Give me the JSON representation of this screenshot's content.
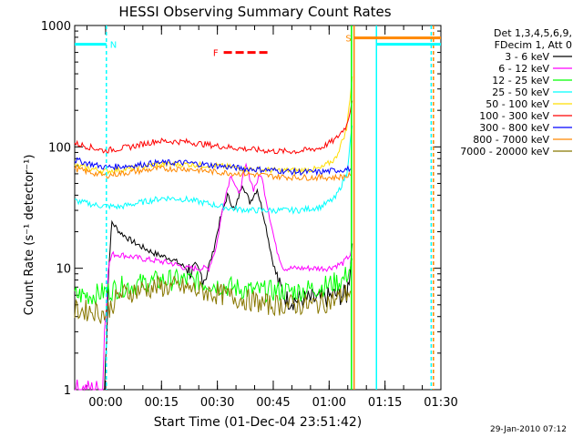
{
  "chart_data": {
    "type": "line",
    "title": "HESSI Observing Summary Count Rates",
    "xlabel": "Start Time (01-Dec-04 23:51:42)",
    "ylabel": "Count Rate (s⁻¹ detector⁻¹)",
    "y_scale": "log",
    "ylim": [
      1,
      1000
    ],
    "xlim_minutes_after_start": [
      0,
      98.3
    ],
    "x_ticks": [
      {
        "label": "00:00",
        "minutes": 8.3
      },
      {
        "label": "00:15",
        "minutes": 23.3
      },
      {
        "label": "00:30",
        "minutes": 38.3
      },
      {
        "label": "00:45",
        "minutes": 53.3
      },
      {
        "label": "01:00",
        "minutes": 68.3
      },
      {
        "label": "01:15",
        "minutes": 83.3
      },
      {
        "label": "01:30",
        "minutes": 98.3
      }
    ],
    "y_ticks": [
      {
        "label": "1",
        "value": 1
      },
      {
        "label": "10",
        "value": 10
      },
      {
        "label": "100",
        "value": 100
      },
      {
        "label": "1000",
        "value": 1000
      }
    ],
    "legend": {
      "placement": "right",
      "header": [
        "Det 1,3,4,5,6,9,",
        "FDecim 1, Att 0"
      ]
    },
    "series": [
      {
        "name": "3 - 6 keV",
        "color": "#000000",
        "points": [
          [
            8,
            1
          ],
          [
            8.6,
            3
          ],
          [
            9,
            8
          ],
          [
            9.5,
            15
          ],
          [
            10,
            24
          ],
          [
            12,
            20
          ],
          [
            15,
            17
          ],
          [
            18,
            15
          ],
          [
            22,
            13
          ],
          [
            26,
            12
          ],
          [
            30,
            10
          ],
          [
            33,
            9
          ],
          [
            35,
            8.5
          ],
          [
            37,
            13
          ],
          [
            39,
            25
          ],
          [
            41,
            40
          ],
          [
            43,
            30
          ],
          [
            45,
            50
          ],
          [
            47,
            35
          ],
          [
            49,
            45
          ],
          [
            51,
            25
          ],
          [
            53,
            12
          ],
          [
            55,
            7
          ],
          [
            57,
            5.5
          ],
          [
            60,
            5.5
          ],
          [
            63,
            5.5
          ],
          [
            66,
            5.5
          ],
          [
            70,
            6
          ],
          [
            73,
            6
          ],
          [
            74,
            10
          ],
          [
            74.5,
            16
          ]
        ]
      },
      {
        "name": "6 - 12 keV",
        "color": "#ff00ff",
        "points": [
          [
            0,
            1
          ],
          [
            7.5,
            1
          ],
          [
            8,
            3
          ],
          [
            9,
            10
          ],
          [
            10,
            13
          ],
          [
            12,
            13
          ],
          [
            15,
            12.5
          ],
          [
            18,
            12
          ],
          [
            22,
            11.5
          ],
          [
            26,
            11
          ],
          [
            30,
            10
          ],
          [
            33,
            10
          ],
          [
            36,
            10
          ],
          [
            38,
            15
          ],
          [
            40,
            35
          ],
          [
            42,
            60
          ],
          [
            44,
            40
          ],
          [
            46,
            70
          ],
          [
            48,
            45
          ],
          [
            50,
            60
          ],
          [
            52,
            30
          ],
          [
            54,
            15
          ],
          [
            56,
            10
          ],
          [
            60,
            10
          ],
          [
            64,
            10
          ],
          [
            68,
            10
          ],
          [
            72,
            11
          ],
          [
            74,
            13
          ],
          [
            74.5,
            14
          ]
        ]
      },
      {
        "name": "12 - 25 keV",
        "color": "#00ff00",
        "points": [
          [
            0,
            6
          ],
          [
            5,
            6
          ],
          [
            9,
            6.5
          ],
          [
            12,
            7
          ],
          [
            18,
            7.5
          ],
          [
            24,
            8
          ],
          [
            30,
            8
          ],
          [
            36,
            7.5
          ],
          [
            42,
            7
          ],
          [
            48,
            6.5
          ],
          [
            54,
            6.5
          ],
          [
            60,
            6.5
          ],
          [
            66,
            7
          ],
          [
            72,
            8
          ],
          [
            74,
            10
          ],
          [
            74.5,
            12
          ]
        ]
      },
      {
        "name": "25 - 50 keV",
        "color": "#00ffff",
        "points": [
          [
            0,
            36
          ],
          [
            6,
            33
          ],
          [
            12,
            32
          ],
          [
            18,
            35
          ],
          [
            24,
            38
          ],
          [
            30,
            37
          ],
          [
            36,
            34
          ],
          [
            42,
            31
          ],
          [
            48,
            30
          ],
          [
            54,
            30
          ],
          [
            60,
            30
          ],
          [
            66,
            32
          ],
          [
            70,
            38
          ],
          [
            73,
            60
          ],
          [
            74.5,
            150
          ]
        ]
      },
      {
        "name": "50 - 100 keV",
        "color": "#ffdd00",
        "points": [
          [
            0,
            70
          ],
          [
            8,
            63
          ],
          [
            15,
            66
          ],
          [
            22,
            72
          ],
          [
            30,
            72
          ],
          [
            38,
            70
          ],
          [
            46,
            66
          ],
          [
            54,
            64
          ],
          [
            60,
            64
          ],
          [
            66,
            66
          ],
          [
            70,
            80
          ],
          [
            73,
            140
          ],
          [
            74.5,
            380
          ]
        ]
      },
      {
        "name": "100 - 300 keV",
        "color": "#ff0000",
        "points": [
          [
            0,
            107
          ],
          [
            8,
            93
          ],
          [
            15,
            100
          ],
          [
            22,
            112
          ],
          [
            30,
            110
          ],
          [
            38,
            102
          ],
          [
            46,
            96
          ],
          [
            54,
            92
          ],
          [
            60,
            92
          ],
          [
            66,
            98
          ],
          [
            70,
            115
          ],
          [
            73,
            150
          ],
          [
            74.5,
            240
          ]
        ]
      },
      {
        "name": "300 - 800 keV",
        "color": "#0000ff",
        "points": [
          [
            0,
            78
          ],
          [
            8,
            68
          ],
          [
            15,
            70
          ],
          [
            22,
            74
          ],
          [
            30,
            74
          ],
          [
            38,
            70
          ],
          [
            46,
            66
          ],
          [
            54,
            64
          ],
          [
            60,
            62
          ],
          [
            66,
            62
          ],
          [
            70,
            64
          ],
          [
            74,
            66
          ]
        ]
      },
      {
        "name": "800 - 7000 keV",
        "color": "#ff8800",
        "points": [
          [
            0,
            66
          ],
          [
            8,
            58
          ],
          [
            15,
            62
          ],
          [
            22,
            66
          ],
          [
            30,
            66
          ],
          [
            38,
            62
          ],
          [
            46,
            60
          ],
          [
            54,
            57
          ],
          [
            60,
            56
          ],
          [
            66,
            56
          ],
          [
            70,
            56
          ],
          [
            74,
            58
          ]
        ]
      },
      {
        "name": "7000 - 20000 keV",
        "color": "#887700",
        "points": [
          [
            0,
            4.5
          ],
          [
            5,
            4.5
          ],
          [
            8,
            4.2
          ],
          [
            10,
            5
          ],
          [
            12,
            6
          ],
          [
            16,
            6.5
          ],
          [
            22,
            7
          ],
          [
            28,
            7
          ],
          [
            34,
            6.5
          ],
          [
            40,
            6
          ],
          [
            46,
            5.5
          ],
          [
            52,
            5
          ],
          [
            58,
            5
          ],
          [
            64,
            5
          ],
          [
            70,
            5.5
          ],
          [
            74,
            6.5
          ]
        ]
      }
    ],
    "flag_bars": [
      {
        "label": "N",
        "color": "#00ffff",
        "x_minutes": [
          0,
          8.5
        ],
        "value": 700
      },
      {
        "label": "F",
        "color": "#ff0000",
        "x_minutes": [
          40,
          52
        ],
        "value": 600
      },
      {
        "label": "S",
        "color": "#ff8800",
        "x_minutes": [
          75,
          98.3
        ],
        "value": 790
      },
      {
        "label": "",
        "color": "#00ffff",
        "x_minutes": [
          81,
          98.3
        ],
        "value": 700
      }
    ],
    "vertical_markers": [
      {
        "color": "#00ffff",
        "style": "dashed",
        "x_minutes": 8.5
      },
      {
        "color": "#ff8800",
        "style": "solid",
        "x_minutes": 75
      },
      {
        "color": "#00ff00",
        "style": "solid",
        "x_minutes": 74.3
      },
      {
        "color": "#00ffff",
        "style": "solid",
        "x_minutes": 81
      },
      {
        "color": "#00ffff",
        "style": "dashed",
        "x_minutes": 95.7
      },
      {
        "color": "#ff8800",
        "style": "dashed",
        "x_minutes": 96.3
      }
    ]
  },
  "footer": {
    "date_stamp": "29-Jan-2010 07:12"
  }
}
